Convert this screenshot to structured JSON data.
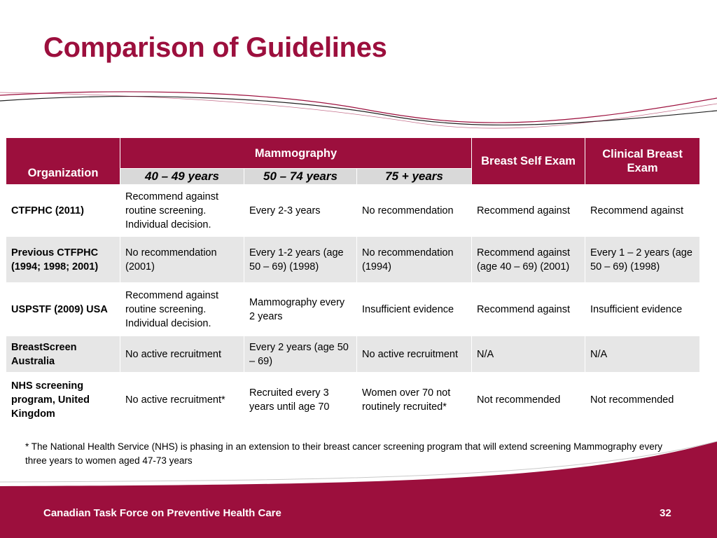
{
  "title": "Comparison of Guidelines",
  "colors": {
    "accent": "#9c0f3d",
    "header_sub_bg": "#d9d9d9",
    "row_alt_bg": "#e6e6e6"
  },
  "table": {
    "header": {
      "organization": "Organization",
      "mammography": "Mammography",
      "mammo_age_groups": [
        "40 – 49 years",
        "50 – 74 years",
        "75 + years"
      ],
      "breast_self_exam": "Breast Self Exam",
      "clinical_breast_exam": "Clinical Breast Exam"
    },
    "rows": [
      {
        "organization": "CTFPHC (2011)",
        "age_40_49": "Recommend against routine screening. Individual decision.",
        "age_50_74": "Every 2-3 years",
        "age_75_plus": "No recommendation",
        "breast_self_exam": "Recommend against",
        "clinical_breast_exam": "Recommend against"
      },
      {
        "organization": "Previous CTFPHC (1994; 1998; 2001)",
        "age_40_49": "No recommendation (2001)",
        "age_50_74": "Every 1-2 years (age 50 – 69) (1998)",
        "age_75_plus": "No recommendation (1994)",
        "breast_self_exam": "Recommend against (age 40 – 69)  (2001)",
        "clinical_breast_exam": "Every 1 – 2 years (age 50 – 69) (1998)"
      },
      {
        "organization": "USPSTF (2009) USA",
        "age_40_49": "Recommend against routine screening. Individual decision.",
        "age_50_74": "Mammography every 2 years",
        "age_75_plus": "Insufficient evidence",
        "breast_self_exam": "Recommend against",
        "clinical_breast_exam": "Insufficient evidence"
      },
      {
        "organization": "BreastScreen Australia",
        "age_40_49": "No active recruitment",
        "age_50_74": "Every 2 years (age 50 – 69)",
        "age_75_plus": "No active recruitment",
        "breast_self_exam": "N/A",
        "clinical_breast_exam": "N/A"
      },
      {
        "organization": "NHS screening program, United Kingdom",
        "age_40_49": "No active recruitment*",
        "age_50_74": "Recruited every 3 years until age 70",
        "age_75_plus": "Women over 70 not routinely recruited*",
        "breast_self_exam": "Not recommended",
        "clinical_breast_exam": "Not recommended"
      }
    ]
  },
  "footnote": "* The National Health Service (NHS) is phasing in an extension to their breast cancer screening program that will extend screening Mammography every three years to women aged 47-73 years",
  "footer": {
    "text": "Canadian Task Force on Preventive Health Care",
    "page_number": "32"
  }
}
